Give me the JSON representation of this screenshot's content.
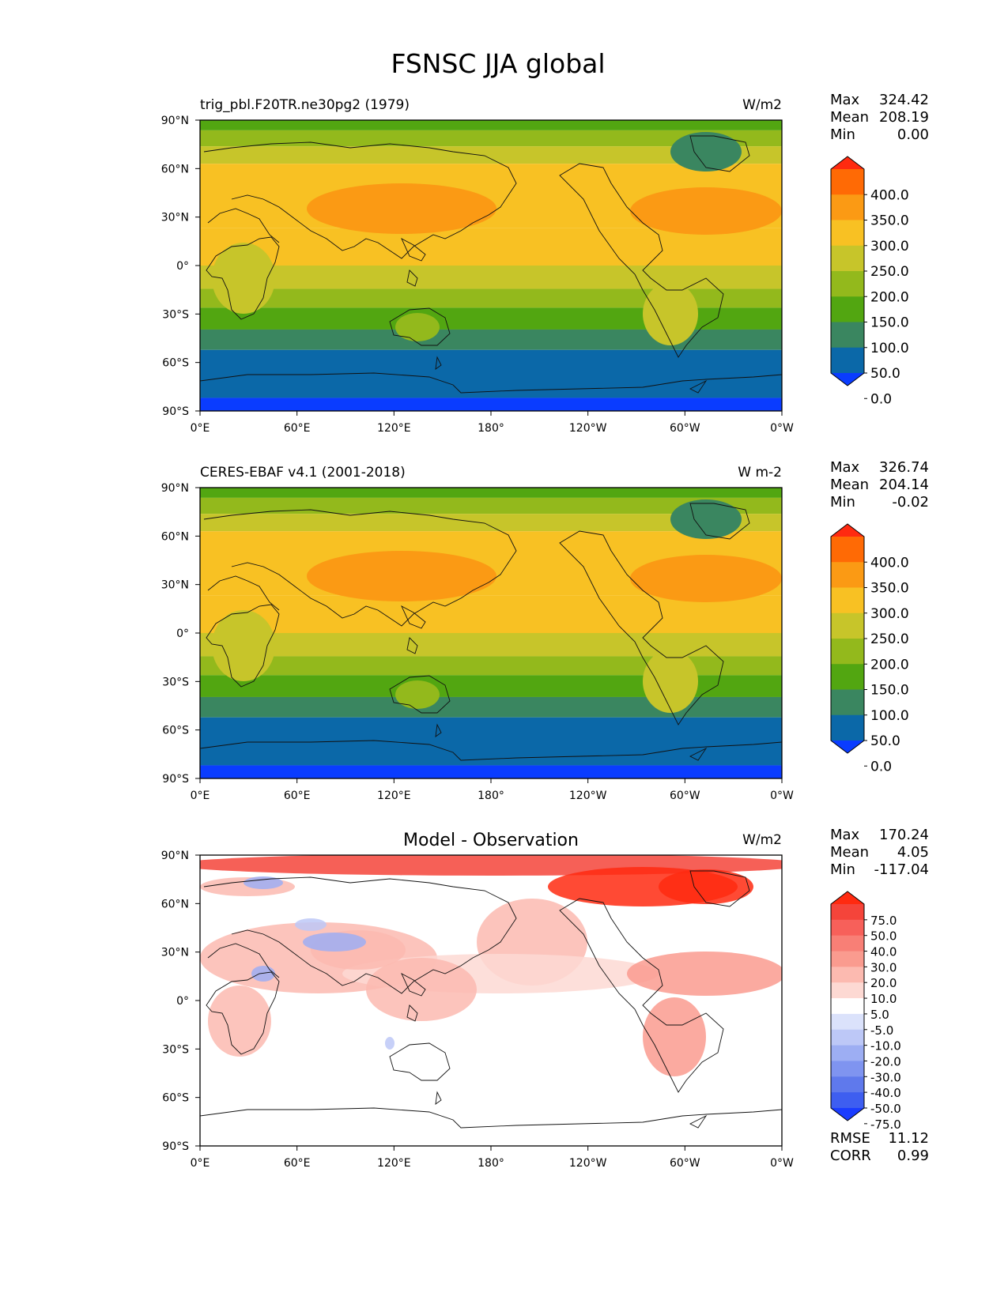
{
  "title": "FSNSC JJA global",
  "lat_ticks": [
    "90°N",
    "60°N",
    "30°N",
    "0°",
    "30°S",
    "60°S",
    "90°S"
  ],
  "lon_ticks": [
    "0°E",
    "60°E",
    "120°E",
    "180°",
    "120°W",
    "60°W",
    "0°W"
  ],
  "panels": [
    {
      "left_title": "trig_pbl.F20TR.ne30pg2 (1979)",
      "center_title": "",
      "units": "W/m2",
      "stats": {
        "max_label": "Max",
        "max": "324.42",
        "mean_label": "Mean",
        "mean": "208.19",
        "min_label": "Min",
        "min": "0.00"
      },
      "colorbar": {
        "labels": [
          "400.0",
          "350.0",
          "300.0",
          "250.0",
          "200.0",
          "150.0",
          "100.0",
          "50.0",
          "0.0"
        ],
        "colors": [
          "#ff2a10",
          "#ff6a05",
          "#fb9a14",
          "#f8c123",
          "#c7c52a",
          "#93b91c",
          "#52a611",
          "#3a8660",
          "#0b68a8",
          "#0a3cff"
        ]
      }
    },
    {
      "left_title": "CERES-EBAF v4.1 (2001-2018)",
      "center_title": "",
      "units": "W m-2",
      "stats": {
        "max_label": "Max",
        "max": "326.74",
        "mean_label": "Mean",
        "mean": "204.14",
        "min_label": "Min",
        "min": "-0.02"
      },
      "colorbar": {
        "labels": [
          "400.0",
          "350.0",
          "300.0",
          "250.0",
          "200.0",
          "150.0",
          "100.0",
          "50.0",
          "0.0"
        ],
        "colors": [
          "#ff2a10",
          "#ff6a05",
          "#fb9a14",
          "#f8c123",
          "#c7c52a",
          "#93b91c",
          "#52a611",
          "#3a8660",
          "#0b68a8",
          "#0a3cff"
        ]
      }
    },
    {
      "left_title": "",
      "center_title": "Model - Observation",
      "units": "W/m2",
      "stats": {
        "max_label": "Max",
        "max": "170.24",
        "mean_label": "Mean",
        "mean": "4.05",
        "min_label": "Min",
        "min": "-117.04"
      },
      "colorbar": {
        "labels": [
          "75.0",
          "50.0",
          "40.0",
          "30.0",
          "20.0",
          "10.0",
          "5.0",
          "-5.0",
          "-10.0",
          "-20.0",
          "-30.0",
          "-40.0",
          "-50.0",
          "-75.0"
        ],
        "colors": [
          "#ff2a10",
          "#f5443a",
          "#f7605a",
          "#f87f76",
          "#fa9b8f",
          "#fcbab0",
          "#fdd9d3",
          "#ffffff",
          "#dbe2fb",
          "#bdc8f7",
          "#9daef3",
          "#7f94f0",
          "#5f79ec",
          "#3e5ef0",
          "#1a3cff"
        ]
      },
      "metrics": {
        "rmse_label": "RMSE",
        "rmse": "11.12",
        "corr_label": "CORR",
        "corr": "0.99"
      }
    }
  ]
}
